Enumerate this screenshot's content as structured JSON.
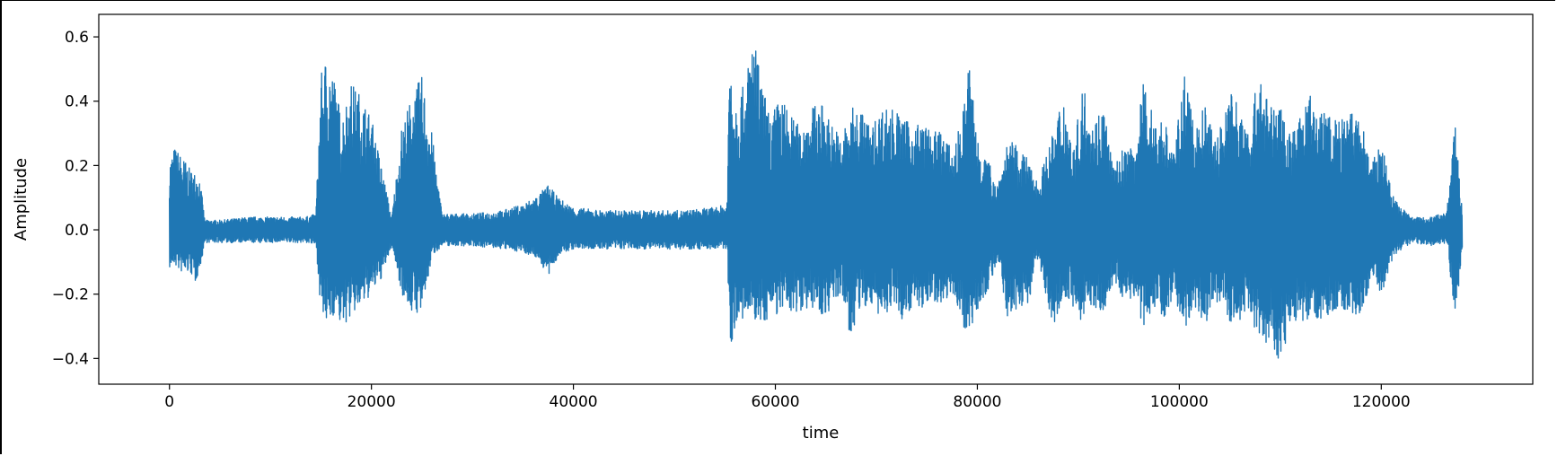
{
  "chart_data": {
    "type": "line",
    "title": "",
    "xlabel": "time",
    "ylabel": "Amplitude",
    "xlim": [
      -7000,
      135000
    ],
    "ylim": [
      -0.48,
      0.67
    ],
    "grid": false,
    "legend": "none",
    "series_color": "#1f77b4",
    "x_ticks": [
      0,
      20000,
      40000,
      60000,
      80000,
      100000,
      120000
    ],
    "x_tick_labels": [
      "0",
      "20000",
      "40000",
      "60000",
      "80000",
      "100000",
      "120000"
    ],
    "y_ticks": [
      -0.4,
      -0.2,
      0.0,
      0.2,
      0.4,
      0.6
    ],
    "y_tick_labels": [
      "−0.4",
      "−0.2",
      "0.0",
      "0.2",
      "0.4",
      "0.6"
    ],
    "series": [
      {
        "values_note_free": true,
        "x": [
          0,
          500,
          1000,
          1500,
          2000,
          2500,
          3000,
          3500,
          5000,
          8000,
          11000,
          13500,
          14500,
          15000,
          15500,
          16000,
          16500,
          17000,
          18000,
          19000,
          20000,
          21000,
          22000,
          23000,
          24000,
          25000,
          26000,
          27000,
          30000,
          33000,
          35000,
          36500,
          37500,
          38500,
          40000,
          43000,
          47000,
          51000,
          54000,
          55200,
          55500,
          56000,
          57000,
          57800,
          58500,
          59500,
          60500,
          61500,
          62500,
          63500,
          64500,
          65500,
          66500,
          67500,
          68500,
          69500,
          70500,
          71500,
          72500,
          73500,
          74500,
          75500,
          76500,
          77500,
          78500,
          79200,
          80000,
          81000,
          82000,
          83000,
          84000,
          85000,
          86000,
          87500,
          88500,
          89500,
          90500,
          91500,
          92500,
          93500,
          94500,
          95500,
          96500,
          97500,
          98500,
          99500,
          100500,
          101500,
          102500,
          103500,
          104500,
          105000,
          106000,
          107000,
          108000,
          109000,
          110000,
          111000,
          112000,
          113000,
          114000,
          115000,
          116000,
          117000,
          118000,
          119000,
          120000,
          121000,
          122000,
          123000,
          125000,
          126500,
          127300,
          128000
        ],
        "upper": [
          0.22,
          0.26,
          0.24,
          0.22,
          0.19,
          0.18,
          0.17,
          0.03,
          0.03,
          0.04,
          0.04,
          0.04,
          0.05,
          0.48,
          0.54,
          0.52,
          0.45,
          0.35,
          0.46,
          0.42,
          0.35,
          0.2,
          0.04,
          0.32,
          0.42,
          0.48,
          0.3,
          0.05,
          0.05,
          0.06,
          0.08,
          0.11,
          0.14,
          0.1,
          0.07,
          0.06,
          0.06,
          0.06,
          0.07,
          0.08,
          0.6,
          0.42,
          0.45,
          0.63,
          0.48,
          0.35,
          0.42,
          0.36,
          0.32,
          0.38,
          0.4,
          0.34,
          0.29,
          0.38,
          0.38,
          0.32,
          0.38,
          0.39,
          0.35,
          0.33,
          0.34,
          0.3,
          0.32,
          0.24,
          0.35,
          0.53,
          0.3,
          0.22,
          0.15,
          0.28,
          0.26,
          0.22,
          0.15,
          0.3,
          0.44,
          0.25,
          0.46,
          0.34,
          0.4,
          0.19,
          0.26,
          0.25,
          0.47,
          0.35,
          0.35,
          0.25,
          0.48,
          0.32,
          0.39,
          0.29,
          0.35,
          0.49,
          0.36,
          0.34,
          0.51,
          0.38,
          0.39,
          0.31,
          0.35,
          0.42,
          0.38,
          0.36,
          0.34,
          0.37,
          0.35,
          0.2,
          0.28,
          0.12,
          0.07,
          0.04,
          0.04,
          0.06,
          0.34,
          0.07
        ],
        "lower": [
          -0.12,
          -0.11,
          -0.13,
          -0.14,
          -0.13,
          -0.17,
          -0.12,
          -0.04,
          -0.04,
          -0.04,
          -0.04,
          -0.04,
          -0.05,
          -0.27,
          -0.3,
          -0.28,
          -0.25,
          -0.31,
          -0.27,
          -0.24,
          -0.2,
          -0.15,
          -0.05,
          -0.2,
          -0.26,
          -0.26,
          -0.08,
          -0.05,
          -0.05,
          -0.06,
          -0.07,
          -0.09,
          -0.15,
          -0.08,
          -0.06,
          -0.06,
          -0.06,
          -0.06,
          -0.06,
          -0.06,
          -0.37,
          -0.3,
          -0.28,
          -0.28,
          -0.3,
          -0.27,
          -0.26,
          -0.26,
          -0.25,
          -0.24,
          -0.27,
          -0.25,
          -0.2,
          -0.35,
          -0.24,
          -0.24,
          -0.28,
          -0.24,
          -0.28,
          -0.24,
          -0.25,
          -0.22,
          -0.23,
          -0.19,
          -0.3,
          -0.32,
          -0.25,
          -0.19,
          -0.1,
          -0.28,
          -0.25,
          -0.23,
          -0.1,
          -0.3,
          -0.2,
          -0.25,
          -0.29,
          -0.24,
          -0.26,
          -0.16,
          -0.22,
          -0.21,
          -0.31,
          -0.24,
          -0.27,
          -0.2,
          -0.32,
          -0.24,
          -0.3,
          -0.22,
          -0.25,
          -0.29,
          -0.29,
          -0.26,
          -0.37,
          -0.34,
          -0.42,
          -0.3,
          -0.28,
          -0.3,
          -0.28,
          -0.26,
          -0.25,
          -0.26,
          -0.27,
          -0.15,
          -0.2,
          -0.1,
          -0.06,
          -0.04,
          -0.05,
          -0.04,
          -0.29,
          -0.06
        ]
      }
    ]
  }
}
